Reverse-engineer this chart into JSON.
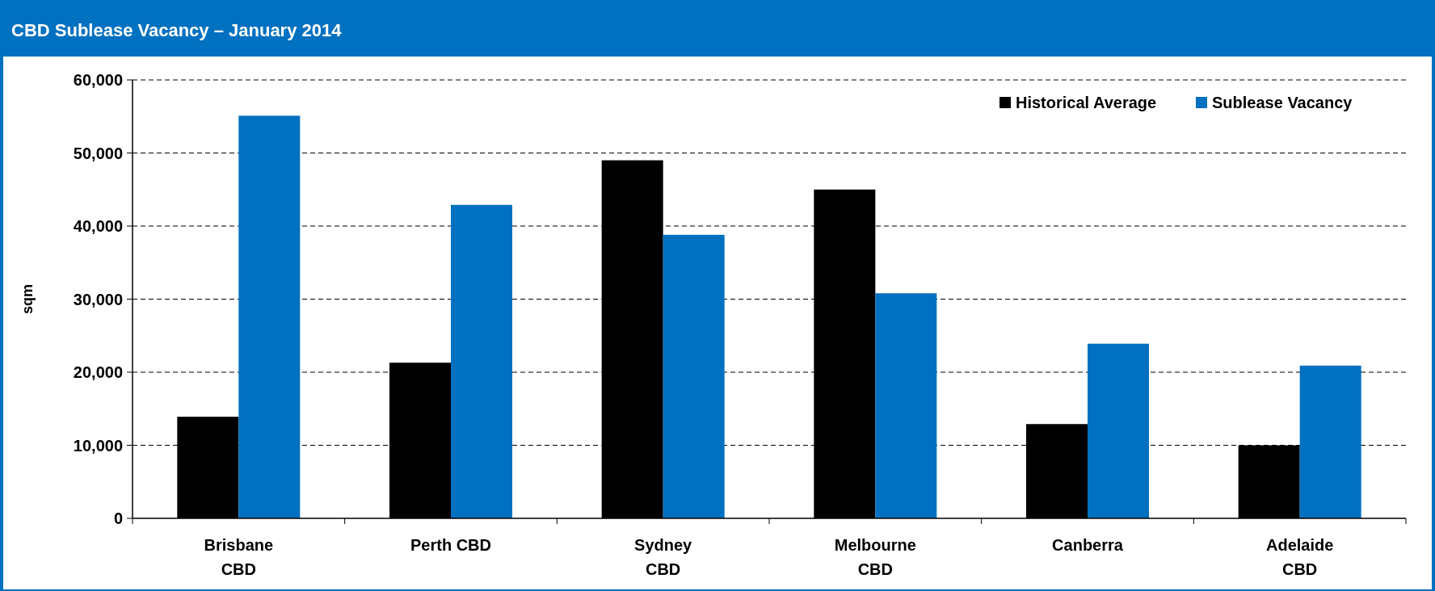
{
  "chart_data": {
    "type": "bar",
    "title": "CBD Sublease Vacancy – January 2014",
    "ylabel": "sqm",
    "categories": [
      "Brisbane CBD",
      "Perth CBD",
      "Sydney CBD",
      "Melbourne CBD",
      "Canberra",
      "Adelaide CBD"
    ],
    "series": [
      {
        "name": "Historical Average",
        "color": "#000000",
        "values": [
          13900,
          21300,
          49000,
          45000,
          12900,
          10000
        ]
      },
      {
        "name": "Sublease Vacancy",
        "color": "#0070c0",
        "values": [
          55100,
          42900,
          38800,
          30800,
          23900,
          20900
        ]
      }
    ],
    "ylim": [
      0,
      60000
    ],
    "yticks": [
      {
        "value": 0,
        "label": "0"
      },
      {
        "value": 10000,
        "label": "10,000"
      },
      {
        "value": 20000,
        "label": "20,000"
      },
      {
        "value": 30000,
        "label": "30,000"
      },
      {
        "value": 40000,
        "label": "40,000"
      },
      {
        "value": 50000,
        "label": "50,000"
      },
      {
        "value": 60000,
        "label": "60,000"
      }
    ],
    "grid": "y",
    "legend": "top right"
  }
}
